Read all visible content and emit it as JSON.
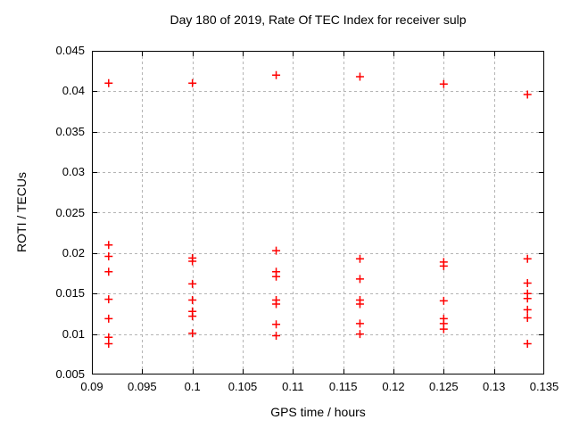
{
  "chart_data": {
    "type": "scatter",
    "title": "Day 180 of 2019, Rate Of TEC Index for receiver sulp",
    "xlabel": "GPS time / hours",
    "ylabel": "ROTI / TECUs",
    "xlim": [
      0.09,
      0.135
    ],
    "ylim": [
      0.005,
      0.045
    ],
    "xticks": [
      0.09,
      0.095,
      0.1,
      0.105,
      0.11,
      0.115,
      0.12,
      0.125,
      0.13,
      0.135
    ],
    "xtick_labels": [
      "0.09",
      "0.095",
      "0.1",
      "0.105",
      "0.11",
      "0.115",
      "0.12",
      "0.125",
      "0.13",
      "0.135"
    ],
    "yticks": [
      0.005,
      0.01,
      0.015,
      0.02,
      0.025,
      0.03,
      0.035,
      0.04,
      0.045
    ],
    "ytick_labels": [
      "0.005",
      "0.01",
      "0.015",
      "0.02",
      "0.025",
      "0.03",
      "0.035",
      "0.04",
      "0.045"
    ],
    "grid": true,
    "legend": "none",
    "marker": {
      "shape": "plus",
      "color": "#ff0000",
      "size": 9
    },
    "colors": {
      "marker": "#ff0000",
      "grid": "#b4b4b4",
      "axis": "#000000",
      "background": "#ffffff"
    },
    "points": [
      [
        0.091667,
        0.041
      ],
      [
        0.091667,
        0.021
      ],
      [
        0.091667,
        0.0196
      ],
      [
        0.091667,
        0.0177
      ],
      [
        0.091667,
        0.0143
      ],
      [
        0.091667,
        0.0119
      ],
      [
        0.091667,
        0.0096
      ],
      [
        0.091667,
        0.0088
      ],
      [
        0.1,
        0.041
      ],
      [
        0.1,
        0.0194
      ],
      [
        0.1,
        0.019
      ],
      [
        0.1,
        0.0162
      ],
      [
        0.1,
        0.0142
      ],
      [
        0.1,
        0.0128
      ],
      [
        0.1,
        0.0122
      ],
      [
        0.1,
        0.0101
      ],
      [
        0.108333,
        0.042
      ],
      [
        0.108333,
        0.0203
      ],
      [
        0.108333,
        0.0177
      ],
      [
        0.108333,
        0.0171
      ],
      [
        0.108333,
        0.0142
      ],
      [
        0.108333,
        0.0137
      ],
      [
        0.108333,
        0.0112
      ],
      [
        0.108333,
        0.0098
      ],
      [
        0.116667,
        0.0418
      ],
      [
        0.116667,
        0.0193
      ],
      [
        0.116667,
        0.0168
      ],
      [
        0.116667,
        0.0142
      ],
      [
        0.116667,
        0.0137
      ],
      [
        0.116667,
        0.0113
      ],
      [
        0.116667,
        0.01
      ],
      [
        0.125,
        0.0409
      ],
      [
        0.125,
        0.0189
      ],
      [
        0.125,
        0.0184
      ],
      [
        0.125,
        0.0141
      ],
      [
        0.125,
        0.0119
      ],
      [
        0.125,
        0.0113
      ],
      [
        0.125,
        0.0106
      ],
      [
        0.133333,
        0.0396
      ],
      [
        0.133333,
        0.0193
      ],
      [
        0.133333,
        0.0163
      ],
      [
        0.133333,
        0.015
      ],
      [
        0.133333,
        0.0144
      ],
      [
        0.133333,
        0.013
      ],
      [
        0.133333,
        0.012
      ],
      [
        0.133333,
        0.0088
      ]
    ]
  }
}
